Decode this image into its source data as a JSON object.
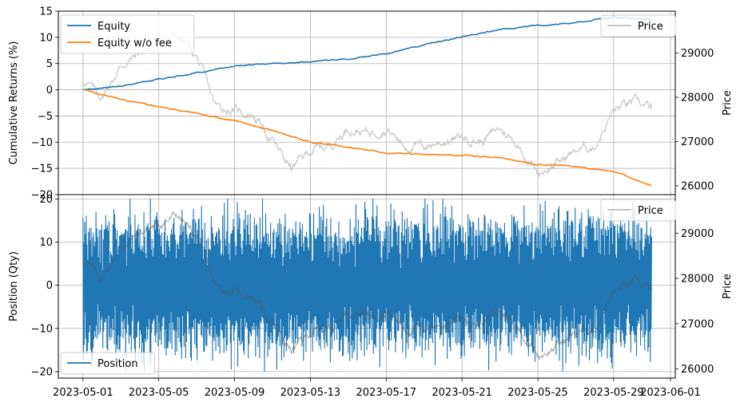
{
  "chart_data": [
    {
      "type": "line",
      "panel": "top",
      "ylabel": "Cumulative Returns (%)",
      "ylim": [
        -20,
        15
      ],
      "yticks": [
        "15",
        "10",
        "5",
        "0",
        "−5",
        "−10",
        "−15",
        "−20"
      ],
      "xlim": [
        "2023-05-01",
        "2023-06-01"
      ],
      "x_ticks_visible": false,
      "series": [
        {
          "name": "Equity",
          "color": "#1f77b4",
          "x": [
            "2023-05-01",
            "2023-05-03",
            "2023-05-05",
            "2023-05-07",
            "2023-05-09",
            "2023-05-11",
            "2023-05-13",
            "2023-05-15",
            "2023-05-17",
            "2023-05-19",
            "2023-05-21",
            "2023-05-23",
            "2023-05-25",
            "2023-05-27",
            "2023-05-29",
            "2023-05-31"
          ],
          "values": [
            0,
            0.7,
            2.0,
            3.3,
            4.6,
            5.0,
            5.4,
            5.9,
            6.9,
            8.6,
            10.1,
            11.5,
            12.3,
            12.8,
            13.8,
            13.5
          ]
        },
        {
          "name": "Equity w/o fee",
          "color": "#ff7f0e",
          "x": [
            "2023-05-01",
            "2023-05-03",
            "2023-05-05",
            "2023-05-07",
            "2023-05-09",
            "2023-05-11",
            "2023-05-13",
            "2023-05-15",
            "2023-05-17",
            "2023-05-19",
            "2023-05-21",
            "2023-05-23",
            "2023-05-25",
            "2023-05-27",
            "2023-05-29",
            "2023-05-31"
          ],
          "values": [
            0,
            -1.8,
            -3.2,
            -4.5,
            -6.0,
            -7.7,
            -10.0,
            -11.0,
            -12.0,
            -12.3,
            -12.5,
            -13.0,
            -14.2,
            -14.7,
            -15.5,
            -18.3
          ]
        }
      ],
      "secondary_axis": {
        "ylabel": "Price",
        "ylim": [
          25800,
          29950
        ],
        "yticks": [
          "29000",
          "28000",
          "27000",
          "26000"
        ],
        "series": [
          {
            "name": "Price",
            "color": "#bfbfbf",
            "x": [
              "2023-05-01",
              "2023-05-02",
              "2023-05-03",
              "2023-05-04",
              "2023-05-05",
              "2023-05-06",
              "2023-05-07",
              "2023-05-08",
              "2023-05-09",
              "2023-05-10",
              "2023-05-11",
              "2023-05-12",
              "2023-05-13",
              "2023-05-14",
              "2023-05-15",
              "2023-05-16",
              "2023-05-17",
              "2023-05-18",
              "2023-05-19",
              "2023-05-20",
              "2023-05-21",
              "2023-05-22",
              "2023-05-23",
              "2023-05-24",
              "2023-05-25",
              "2023-05-26",
              "2023-05-27",
              "2023-05-28",
              "2023-05-29",
              "2023-05-30",
              "2023-05-31"
            ],
            "values": [
              28400,
              28000,
              28700,
              29000,
              29200,
              29400,
              28900,
              27800,
              27700,
              27600,
              27000,
              26400,
              26800,
              26900,
              27300,
              27200,
              27300,
              26900,
              26900,
              27000,
              27100,
              27000,
              27300,
              26900,
              26300,
              26500,
              26800,
              26900,
              27700,
              27900,
              27750
            ]
          }
        ]
      },
      "legend": [
        "Equity",
        "Equity w/o fee"
      ],
      "legend_position": "upper left",
      "secondary_legend": [
        "Price"
      ],
      "secondary_legend_position": "upper right",
      "grid": true
    },
    {
      "type": "line",
      "panel": "bottom",
      "ylabel": "Position (Qty)",
      "ylim": [
        -21.5,
        21
      ],
      "yticks": [
        "20",
        "10",
        "0",
        "−10",
        "−20"
      ],
      "xlim": [
        "2023-05-01",
        "2023-06-01"
      ],
      "xticks": [
        "2023-05-01",
        "2023-05-05",
        "2023-05-09",
        "2023-05-13",
        "2023-05-17",
        "2023-05-21",
        "2023-05-25",
        "2023-05-29",
        "2023-06-01"
      ],
      "series": [
        {
          "name": "Position",
          "color": "#1f77b4",
          "style": "dense oscillation",
          "range": [
            -20,
            20
          ]
        }
      ],
      "secondary_axis": {
        "ylabel": "Price",
        "ylim": [
          25800,
          29850
        ],
        "yticks": [
          "29000",
          "28000",
          "27000",
          "26000"
        ],
        "series": [
          {
            "name": "Price",
            "color": "#bfbfbf",
            "same_as": "top"
          }
        ]
      },
      "legend": [
        "Position"
      ],
      "legend_position": "lower left",
      "secondary_legend": [
        "Price"
      ],
      "secondary_legend_position": "upper right",
      "grid": true
    }
  ]
}
